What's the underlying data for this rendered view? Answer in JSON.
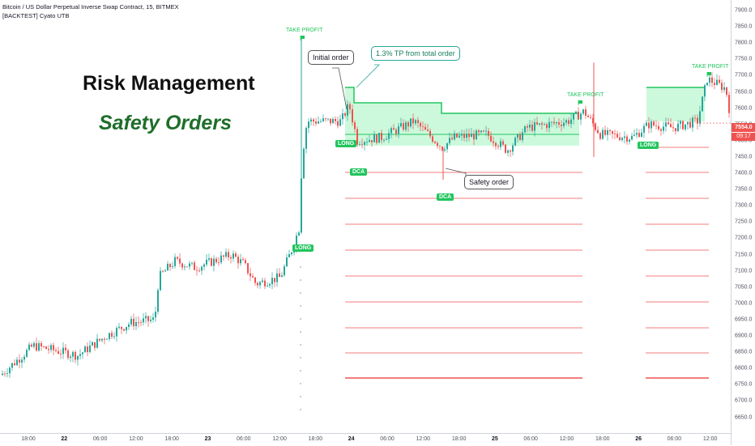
{
  "header": {
    "symbol_line": "Bitcoin / US Dollar Perpetual Inverse Swap Contract, 15, BITMEX",
    "strategy_line": "[BACKTEST] Cyato UTB"
  },
  "overlay": {
    "title": "Risk Management",
    "subtitle": "Safety Orders"
  },
  "callouts": {
    "initial_order": "Initial order",
    "tp_note": "1.3% TP from total order",
    "safety_order": "Safety order"
  },
  "markers": {
    "long": "LONG",
    "dca": "DCA",
    "take_profit": "TAKE PROFIT"
  },
  "price_axis": {
    "ticks": [
      "7900.0",
      "7850.0",
      "7800.0",
      "7750.0",
      "7700.0",
      "7650.0",
      "7600.0",
      "7550.0",
      "7500.0",
      "7450.0",
      "7400.0",
      "7350.0",
      "7300.0",
      "7250.0",
      "7200.0",
      "7150.0",
      "7100.0",
      "7050.0",
      "7000.0",
      "6950.0",
      "6900.0",
      "6850.0",
      "6800.0",
      "6750.0",
      "6700.0",
      "6650.0"
    ],
    "current_price": "7554.0",
    "countdown": "09:17"
  },
  "time_axis": {
    "labels": [
      {
        "text": "18:00",
        "day": false
      },
      {
        "text": "22",
        "day": true
      },
      {
        "text": "06:00",
        "day": false
      },
      {
        "text": "12:00",
        "day": false
      },
      {
        "text": "18:00",
        "day": false
      },
      {
        "text": "23",
        "day": true
      },
      {
        "text": "06:00",
        "day": false
      },
      {
        "text": "12:00",
        "day": false
      },
      {
        "text": "18:00",
        "day": false
      },
      {
        "text": "24",
        "day": true
      },
      {
        "text": "06:00",
        "day": false
      },
      {
        "text": "12:00",
        "day": false
      },
      {
        "text": "18:00",
        "day": false
      },
      {
        "text": "25",
        "day": true
      },
      {
        "text": "06:00",
        "day": false
      },
      {
        "text": "12:00",
        "day": false
      },
      {
        "text": "18:00",
        "day": false
      },
      {
        "text": "26",
        "day": true
      },
      {
        "text": "06:00",
        "day": false
      },
      {
        "text": "12:00",
        "day": false
      }
    ]
  },
  "colors": {
    "up": "#26a69a",
    "down": "#ef5350",
    "tp_line": "#22c55e",
    "tp_fill": "#bbf7d0",
    "safety_line": "#ef5350"
  }
}
